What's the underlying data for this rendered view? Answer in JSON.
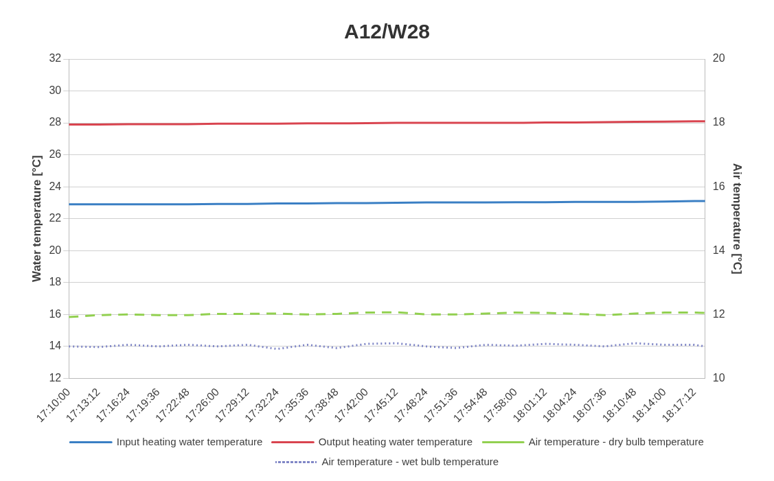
{
  "chart_data": {
    "type": "line",
    "title": "A12/W28",
    "ylabel": "Water temperature [°C]",
    "y2label": "Air temperature [°C]",
    "x": [
      17.1667,
      17.22,
      17.2733,
      17.3267,
      17.38,
      17.4333,
      17.4867,
      17.54,
      17.5933,
      17.6467,
      17.7,
      17.7533,
      17.8067,
      17.86,
      17.9133,
      17.9667,
      18.02,
      18.0733,
      18.1267,
      18.18,
      18.2333,
      18.2867,
      18.306
    ],
    "xlim": [
      17.1667,
      18.306
    ],
    "xticks": [
      {
        "value": 17.1667,
        "label": "17:10:00"
      },
      {
        "value": 17.22,
        "label": "17:13:12"
      },
      {
        "value": 17.2733,
        "label": "17:16:24"
      },
      {
        "value": 17.3267,
        "label": "17:19:36"
      },
      {
        "value": 17.38,
        "label": "17:22:48"
      },
      {
        "value": 17.4333,
        "label": "17:26:00"
      },
      {
        "value": 17.4867,
        "label": "17:29:12"
      },
      {
        "value": 17.54,
        "label": "17:32:24"
      },
      {
        "value": 17.5933,
        "label": "17:35:36"
      },
      {
        "value": 17.6467,
        "label": "17:38:48"
      },
      {
        "value": 17.7,
        "label": "17:42:00"
      },
      {
        "value": 17.7533,
        "label": "17:45:12"
      },
      {
        "value": 17.8067,
        "label": "17:48:24"
      },
      {
        "value": 17.86,
        "label": "17:51:36"
      },
      {
        "value": 17.9133,
        "label": "17:54:48"
      },
      {
        "value": 17.9667,
        "label": "17:58:00"
      },
      {
        "value": 18.02,
        "label": "18:01:12"
      },
      {
        "value": 18.0733,
        "label": "18:04:24"
      },
      {
        "value": 18.1267,
        "label": "18:07:36"
      },
      {
        "value": 18.18,
        "label": "18:10:48"
      },
      {
        "value": 18.2333,
        "label": "18:14:00"
      },
      {
        "value": 18.2867,
        "label": "18:17:12"
      }
    ],
    "ylim": [
      12,
      32
    ],
    "yticks": [
      12,
      14,
      16,
      18,
      20,
      22,
      24,
      26,
      28,
      30,
      32
    ],
    "y2lim": [
      10,
      20
    ],
    "y2ticks": [
      10,
      12,
      14,
      16,
      18,
      20
    ],
    "grid": "y",
    "legend": "bottom",
    "marker": "none",
    "series": [
      {
        "name": "Input heating water temperature",
        "color": "#3a7fc4",
        "line_style": "solid",
        "values": [
          22.9,
          22.9,
          22.9,
          22.9,
          22.9,
          22.92,
          22.92,
          22.95,
          22.95,
          22.97,
          22.98,
          23.0,
          23.02,
          23.02,
          23.02,
          23.03,
          23.03,
          23.05,
          23.05,
          23.05,
          23.07,
          23.1,
          23.1
        ]
      },
      {
        "name": "Output heating water temperature",
        "color": "#d9444f",
        "line_style": "solid",
        "values": [
          27.9,
          27.9,
          27.92,
          27.92,
          27.92,
          27.95,
          27.95,
          27.95,
          27.97,
          27.97,
          27.98,
          28.0,
          28.0,
          28.0,
          28.0,
          28.0,
          28.02,
          28.02,
          28.05,
          28.07,
          28.08,
          28.1,
          28.1
        ]
      },
      {
        "name": "Air temperature - dry bulb temperature",
        "color": "#92d050",
        "line_style": "dashed",
        "axis": "y2",
        "values": [
          11.92,
          11.98,
          12.0,
          11.98,
          11.98,
          12.02,
          12.02,
          12.03,
          12.0,
          12.02,
          12.06,
          12.07,
          12.0,
          12.0,
          12.03,
          12.06,
          12.05,
          12.02,
          11.98,
          12.03,
          12.06,
          12.06,
          12.05
        ]
      },
      {
        "name": "Air temperature - wet bulb temperature",
        "color": "#7f86c6",
        "line_style": "dotted",
        "axis": "y2",
        "values": [
          11.0,
          10.98,
          11.05,
          11.0,
          11.05,
          11.0,
          11.05,
          10.92,
          11.05,
          10.95,
          11.08,
          11.1,
          11.0,
          10.95,
          11.05,
          11.02,
          11.08,
          11.05,
          11.0,
          11.1,
          11.05,
          11.05,
          11.0
        ]
      }
    ]
  }
}
